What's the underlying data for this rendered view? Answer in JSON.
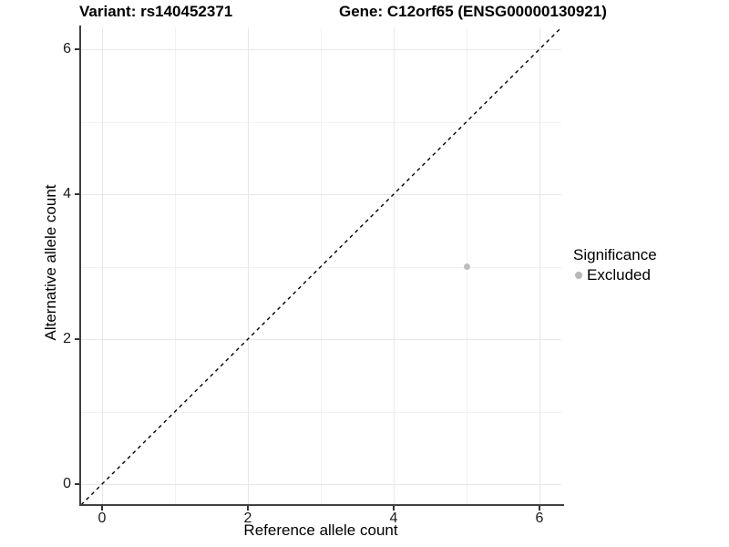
{
  "chart_data": {
    "type": "scatter",
    "title_left": "Variant: rs140452371",
    "title_right": "Gene: C12orf65 (ENSG00000130921)",
    "xlabel": "Reference allele count",
    "ylabel": "Alternative allele count",
    "x_ticks": [
      0,
      2,
      4,
      6
    ],
    "y_ticks": [
      0,
      2,
      4,
      6
    ],
    "x_minor_ticks": [
      1,
      3,
      5
    ],
    "y_minor_ticks": [
      1,
      3,
      5
    ],
    "xlim": [
      -0.2875,
      6.2875
    ],
    "ylim": [
      -0.2875,
      6.2875
    ],
    "grid": "major+minor",
    "legend_position": "right",
    "reference_line": {
      "type": "identity",
      "style": "dashed",
      "color": "#000000"
    },
    "series": [
      {
        "name": "Excluded",
        "color": "#bdbdbd",
        "marker": "circle",
        "points": [
          {
            "x": 5,
            "y": 3
          }
        ]
      }
    ],
    "legend": {
      "title": "Significance",
      "items": [
        {
          "label": "Excluded",
          "color": "#b8b8b8",
          "marker": "circle"
        }
      ]
    },
    "colors": {
      "background": "#ffffff",
      "axis_line": "#404040",
      "tick_label": "#1a1a1a",
      "grid_major": "#e8e8e8",
      "grid_minor": "#f2f2f2",
      "point": "#bdbdbd",
      "reference_line": "#000000"
    }
  }
}
